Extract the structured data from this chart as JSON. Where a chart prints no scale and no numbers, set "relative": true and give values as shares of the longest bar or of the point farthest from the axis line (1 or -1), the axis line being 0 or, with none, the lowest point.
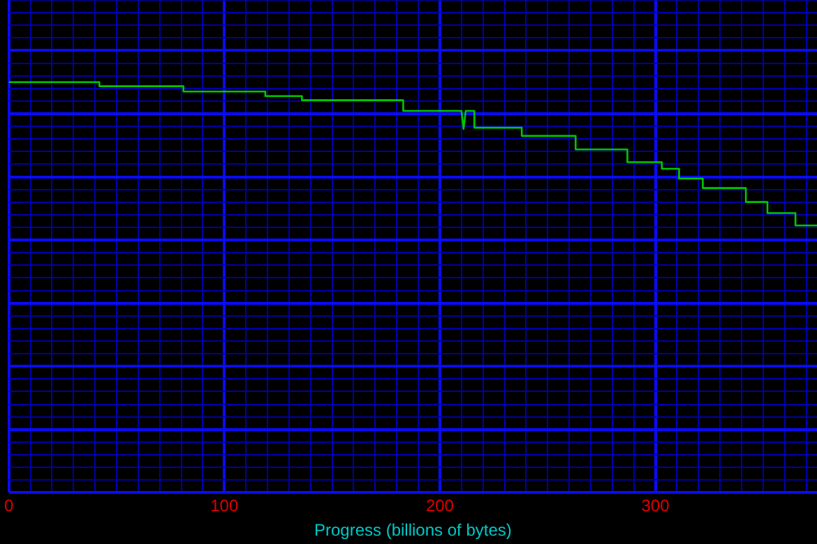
{
  "chart_data": {
    "type": "line",
    "xlabel": "Progress (billions of bytes)",
    "relative": true,
    "xlim": [
      0,
      375
    ],
    "xticks": [
      0,
      {
        "value": 10,
        "label": null
      },
      {
        "value": 20,
        "label": null
      },
      {
        "value": 30,
        "label": null
      },
      {
        "value": 40,
        "label": null
      },
      {
        "value": 50,
        "label": null
      },
      {
        "value": 60,
        "label": null
      },
      {
        "value": 70,
        "label": null
      },
      {
        "value": 80,
        "label": null
      },
      {
        "value": 90,
        "label": null
      },
      100,
      {
        "value": 110,
        "label": null
      },
      {
        "value": 120,
        "label": null
      },
      {
        "value": 130,
        "label": null
      },
      {
        "value": 140,
        "label": null
      },
      {
        "value": 150,
        "label": null
      },
      {
        "value": 160,
        "label": null
      },
      {
        "value": 170,
        "label": null
      },
      {
        "value": 180,
        "label": null
      },
      {
        "value": 190,
        "label": null
      },
      200,
      {
        "value": 210,
        "label": null
      },
      {
        "value": 220,
        "label": null
      },
      {
        "value": 230,
        "label": null
      },
      {
        "value": 240,
        "label": null
      },
      {
        "value": 250,
        "label": null
      },
      {
        "value": 260,
        "label": null
      },
      {
        "value": 270,
        "label": null
      },
      {
        "value": 280,
        "label": null
      },
      {
        "value": 290,
        "label": null
      },
      300,
      {
        "value": 310,
        "label": null
      },
      {
        "value": 320,
        "label": null
      },
      {
        "value": 330,
        "label": null
      },
      {
        "value": 340,
        "label": null
      },
      {
        "value": 350,
        "label": null
      },
      {
        "value": 360,
        "label": null
      },
      {
        "value": 370,
        "label": null
      }
    ],
    "grid": true,
    "legend": false,
    "marker": "none",
    "line_style": "solid",
    "series": [
      {
        "color": "#00c800",
        "x": [
          0,
          42,
          42,
          81,
          81,
          119,
          119,
          136,
          136,
          183,
          183,
          210,
          211,
          212,
          216,
          216,
          238,
          238,
          263,
          263,
          287,
          287,
          303,
          303,
          311,
          311,
          322,
          322,
          342,
          342,
          352,
          352,
          365,
          365,
          375
        ],
        "values": [
          1,
          1,
          0.99,
          0.99,
          0.977,
          0.977,
          0.966,
          0.966,
          0.956,
          0.956,
          0.93,
          0.93,
          0.886,
          0.93,
          0.93,
          0.889,
          0.889,
          0.869,
          0.869,
          0.836,
          0.836,
          0.805,
          0.805,
          0.789,
          0.789,
          0.765,
          0.765,
          0.742,
          0.742,
          0.708,
          0.708,
          0.681,
          0.681,
          0.651,
          0.651
        ]
      }
    ]
  }
}
